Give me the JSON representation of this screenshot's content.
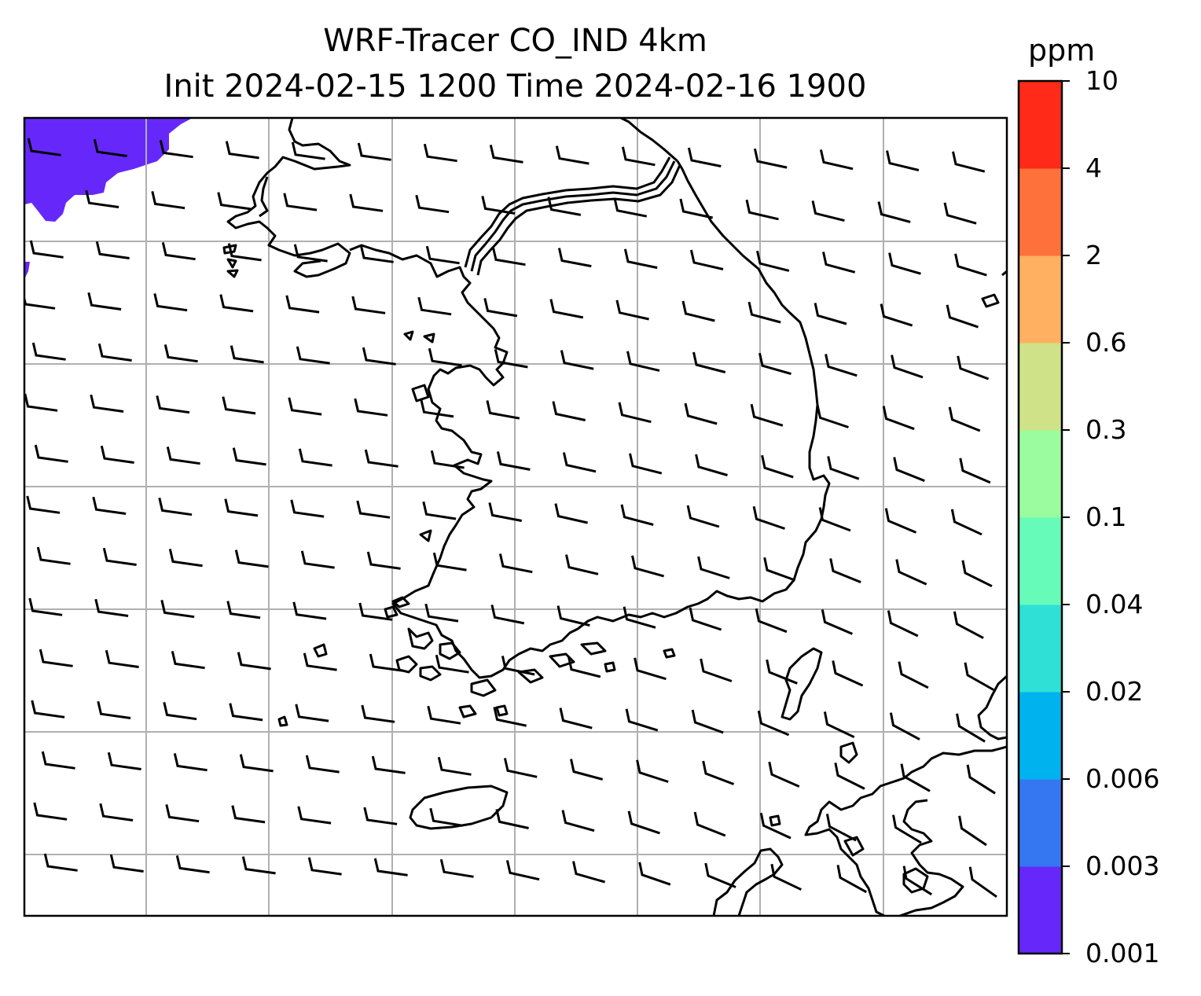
{
  "title": {
    "line1": "WRF-Tracer CO_IND 4km",
    "line2": "Init 2024-02-15 1200 Time 2024-02-16 1900"
  },
  "colorbar": {
    "unit": "ppm",
    "levels": [
      "0.001",
      "0.003",
      "0.006",
      "0.02",
      "0.04",
      "0.1",
      "0.3",
      "0.6",
      "2",
      "4",
      "10"
    ],
    "colors": [
      "#6628fa",
      "#3477f1",
      "#00b3ee",
      "#2ee0d6",
      "#66fbb9",
      "#9afc9e",
      "#cfe287",
      "#ffb060",
      "#ff713b",
      "#ff2a17"
    ]
  },
  "map": {
    "coastline_color": "#000000",
    "gridline_color": "#b0b0b0",
    "barb_color": "#000000",
    "shaded_field": {
      "level_band": "0.001-0.003",
      "color": "#6628fa",
      "location": "top-left corner"
    },
    "wind_barbs": "westerly to north-westerly flow, mostly one full barb, across entire domain"
  }
}
